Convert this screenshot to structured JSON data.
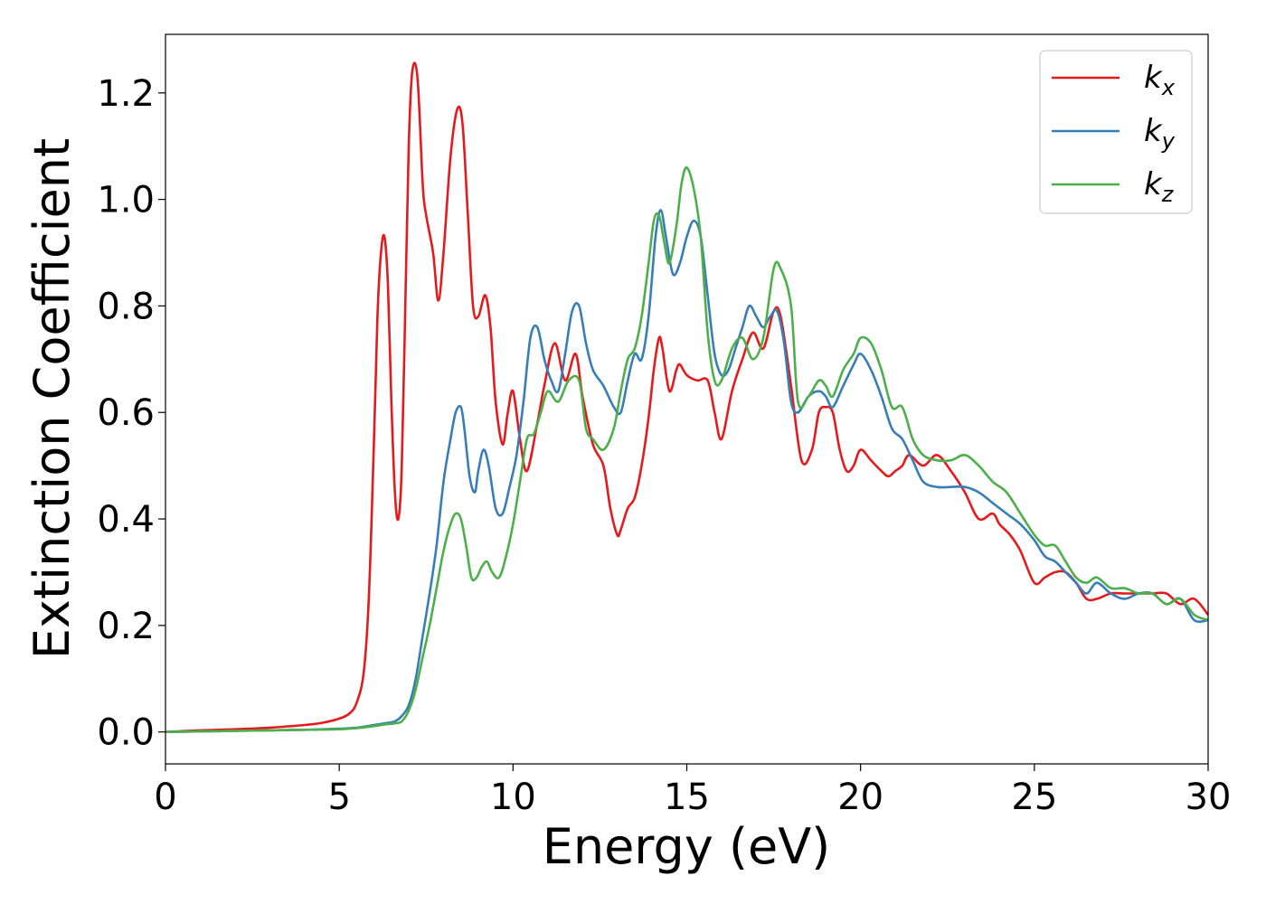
{
  "chart_data": {
    "type": "line",
    "xlabel": "Energy (eV)",
    "ylabel": "Extinction Coefficient",
    "xlim": [
      0,
      30
    ],
    "ylim": [
      -0.06,
      1.31
    ],
    "xticks": [
      0,
      5,
      10,
      15,
      20,
      25,
      30
    ],
    "xtick_labels": [
      "0",
      "5",
      "10",
      "15",
      "20",
      "25",
      "30"
    ],
    "yticks": [
      0.0,
      0.2,
      0.4,
      0.6,
      0.8,
      1.0,
      1.2
    ],
    "ytick_labels": [
      "0.0",
      "0.2",
      "0.4",
      "0.6",
      "0.8",
      "1.0",
      "1.2"
    ],
    "grid": false,
    "legend_position": "top-right",
    "series": [
      {
        "name": "k",
        "subscript": "x",
        "color": "#e41a1c",
        "x": [
          0,
          1,
          2,
          3,
          4,
          4.5,
          5,
          5.3,
          5.5,
          5.7,
          5.85,
          6.0,
          6.1,
          6.2,
          6.3,
          6.4,
          6.5,
          6.6,
          6.7,
          6.8,
          6.9,
          7.0,
          7.1,
          7.25,
          7.4,
          7.5,
          7.7,
          7.85,
          8.0,
          8.2,
          8.4,
          8.55,
          8.7,
          8.85,
          9.0,
          9.2,
          9.35,
          9.5,
          9.7,
          9.85,
          10.0,
          10.2,
          10.4,
          10.7,
          10.9,
          11.2,
          11.5,
          11.8,
          12.0,
          12.3,
          12.6,
          12.8,
          13.0,
          13.1,
          13.3,
          13.5,
          13.7,
          13.9,
          14.05,
          14.2,
          14.3,
          14.5,
          14.7,
          14.8,
          15.0,
          15.3,
          15.6,
          15.8,
          16.0,
          16.3,
          16.6,
          16.9,
          17.2,
          17.5,
          17.7,
          18.0,
          18.3,
          18.6,
          18.8,
          19.0,
          19.2,
          19.4,
          19.6,
          19.8,
          20.0,
          20.3,
          20.6,
          20.8,
          21.0,
          21.2,
          21.4,
          21.8,
          22.2,
          22.6,
          23.0,
          23.4,
          23.8,
          24.0,
          24.3,
          24.6,
          25.0,
          25.3,
          25.6,
          25.9,
          26.2,
          26.5,
          26.8,
          27.2,
          27.6,
          28.0,
          28.4,
          28.8,
          29.2,
          29.6,
          30.0
        ],
        "y": [
          0.0,
          0.003,
          0.005,
          0.008,
          0.013,
          0.017,
          0.025,
          0.035,
          0.055,
          0.11,
          0.25,
          0.55,
          0.78,
          0.9,
          0.93,
          0.84,
          0.62,
          0.45,
          0.4,
          0.5,
          0.8,
          1.1,
          1.24,
          1.23,
          1.03,
          0.97,
          0.9,
          0.81,
          0.9,
          1.08,
          1.17,
          1.14,
          0.97,
          0.8,
          0.78,
          0.82,
          0.76,
          0.62,
          0.54,
          0.6,
          0.64,
          0.55,
          0.49,
          0.58,
          0.65,
          0.73,
          0.66,
          0.71,
          0.63,
          0.54,
          0.5,
          0.42,
          0.37,
          0.38,
          0.42,
          0.44,
          0.5,
          0.59,
          0.68,
          0.74,
          0.72,
          0.64,
          0.68,
          0.69,
          0.67,
          0.66,
          0.66,
          0.6,
          0.55,
          0.64,
          0.7,
          0.75,
          0.72,
          0.79,
          0.78,
          0.65,
          0.51,
          0.53,
          0.6,
          0.61,
          0.6,
          0.53,
          0.49,
          0.5,
          0.53,
          0.51,
          0.49,
          0.48,
          0.49,
          0.5,
          0.52,
          0.5,
          0.52,
          0.49,
          0.45,
          0.4,
          0.41,
          0.39,
          0.37,
          0.34,
          0.28,
          0.29,
          0.3,
          0.3,
          0.28,
          0.25,
          0.25,
          0.26,
          0.26,
          0.26,
          0.26,
          0.26,
          0.24,
          0.25,
          0.22
        ]
      },
      {
        "name": "k",
        "subscript": "y",
        "color": "#377eb8",
        "x": [
          0,
          1,
          2,
          3,
          4,
          5,
          5.5,
          6.0,
          6.3,
          6.6,
          6.8,
          7.0,
          7.2,
          7.4,
          7.6,
          7.8,
          8.0,
          8.2,
          8.35,
          8.5,
          8.6,
          8.75,
          8.9,
          9.0,
          9.15,
          9.3,
          9.5,
          9.7,
          9.9,
          10.1,
          10.3,
          10.5,
          10.7,
          10.9,
          11.1,
          11.3,
          11.5,
          11.7,
          11.9,
          12.1,
          12.3,
          12.6,
          12.9,
          13.1,
          13.3,
          13.5,
          13.7,
          13.9,
          14.1,
          14.25,
          14.4,
          14.6,
          14.8,
          15.0,
          15.2,
          15.4,
          15.6,
          15.8,
          16.0,
          16.2,
          16.4,
          16.6,
          16.8,
          17.0,
          17.2,
          17.4,
          17.6,
          17.8,
          18.0,
          18.2,
          18.5,
          18.8,
          19.0,
          19.2,
          19.5,
          19.8,
          20.0,
          20.3,
          20.6,
          20.9,
          21.2,
          21.5,
          21.8,
          22.2,
          22.6,
          23.0,
          23.4,
          23.8,
          24.2,
          24.6,
          25.0,
          25.3,
          25.6,
          25.9,
          26.2,
          26.5,
          26.8,
          27.2,
          27.6,
          28.0,
          28.4,
          28.8,
          29.2,
          29.6,
          30.0
        ],
        "y": [
          0.0,
          0.001,
          0.002,
          0.003,
          0.004,
          0.006,
          0.008,
          0.013,
          0.016,
          0.02,
          0.03,
          0.05,
          0.1,
          0.18,
          0.26,
          0.35,
          0.47,
          0.55,
          0.6,
          0.61,
          0.57,
          0.48,
          0.45,
          0.49,
          0.53,
          0.5,
          0.42,
          0.41,
          0.46,
          0.52,
          0.62,
          0.74,
          0.76,
          0.7,
          0.66,
          0.64,
          0.71,
          0.79,
          0.8,
          0.73,
          0.68,
          0.65,
          0.61,
          0.6,
          0.66,
          0.71,
          0.7,
          0.78,
          0.93,
          0.98,
          0.93,
          0.86,
          0.88,
          0.93,
          0.96,
          0.93,
          0.82,
          0.71,
          0.67,
          0.68,
          0.72,
          0.76,
          0.8,
          0.78,
          0.76,
          0.78,
          0.79,
          0.73,
          0.62,
          0.6,
          0.63,
          0.64,
          0.63,
          0.61,
          0.65,
          0.69,
          0.71,
          0.68,
          0.63,
          0.57,
          0.55,
          0.51,
          0.47,
          0.46,
          0.46,
          0.46,
          0.45,
          0.43,
          0.41,
          0.39,
          0.36,
          0.33,
          0.32,
          0.3,
          0.28,
          0.26,
          0.28,
          0.26,
          0.25,
          0.26,
          0.26,
          0.24,
          0.25,
          0.21,
          0.21
        ]
      },
      {
        "name": "k",
        "subscript": "z",
        "color": "#4daf4a",
        "x": [
          0,
          1,
          2,
          3,
          4,
          5,
          5.5,
          6.0,
          6.3,
          6.6,
          6.8,
          7.0,
          7.2,
          7.4,
          7.6,
          7.8,
          8.0,
          8.2,
          8.35,
          8.5,
          8.65,
          8.8,
          8.95,
          9.1,
          9.25,
          9.4,
          9.6,
          9.8,
          10.0,
          10.2,
          10.4,
          10.6,
          10.8,
          11.0,
          11.3,
          11.6,
          11.9,
          12.1,
          12.3,
          12.6,
          12.9,
          13.1,
          13.3,
          13.5,
          13.7,
          13.9,
          14.05,
          14.2,
          14.35,
          14.5,
          14.7,
          14.85,
          15.0,
          15.2,
          15.4,
          15.6,
          15.8,
          16.0,
          16.3,
          16.6,
          16.9,
          17.2,
          17.5,
          17.7,
          18.0,
          18.2,
          18.5,
          18.8,
          19.0,
          19.2,
          19.5,
          19.8,
          20.0,
          20.3,
          20.6,
          20.9,
          21.2,
          21.5,
          21.8,
          22.2,
          22.6,
          23.0,
          23.4,
          23.8,
          24.2,
          24.6,
          25.0,
          25.3,
          25.6,
          25.9,
          26.2,
          26.5,
          26.8,
          27.2,
          27.6,
          28.0,
          28.4,
          28.8,
          29.2,
          29.6,
          30.0
        ],
        "y": [
          0.0,
          0.001,
          0.002,
          0.003,
          0.004,
          0.005,
          0.007,
          0.011,
          0.014,
          0.016,
          0.02,
          0.04,
          0.08,
          0.14,
          0.2,
          0.27,
          0.34,
          0.39,
          0.41,
          0.4,
          0.35,
          0.29,
          0.29,
          0.31,
          0.32,
          0.3,
          0.29,
          0.33,
          0.39,
          0.47,
          0.55,
          0.56,
          0.6,
          0.64,
          0.62,
          0.66,
          0.66,
          0.57,
          0.55,
          0.53,
          0.57,
          0.64,
          0.7,
          0.72,
          0.78,
          0.88,
          0.96,
          0.97,
          0.92,
          0.88,
          0.95,
          1.03,
          1.06,
          1.02,
          0.93,
          0.75,
          0.66,
          0.66,
          0.72,
          0.74,
          0.7,
          0.74,
          0.87,
          0.87,
          0.8,
          0.62,
          0.63,
          0.66,
          0.65,
          0.63,
          0.68,
          0.71,
          0.74,
          0.73,
          0.68,
          0.61,
          0.61,
          0.55,
          0.52,
          0.51,
          0.51,
          0.52,
          0.5,
          0.47,
          0.45,
          0.41,
          0.37,
          0.35,
          0.35,
          0.32,
          0.29,
          0.28,
          0.29,
          0.27,
          0.27,
          0.26,
          0.26,
          0.24,
          0.25,
          0.22,
          0.21
        ]
      }
    ]
  }
}
